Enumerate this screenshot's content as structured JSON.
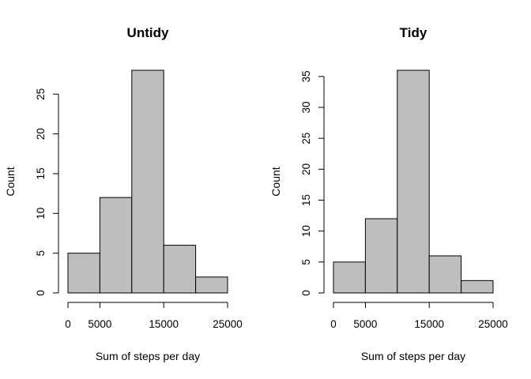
{
  "chart_data": [
    {
      "type": "bar",
      "title": "Untidy",
      "xlabel": "Sum of steps per day",
      "ylabel": "Count",
      "bins": [
        [
          0,
          5000
        ],
        [
          5000,
          10000
        ],
        [
          10000,
          15000
        ],
        [
          15000,
          20000
        ],
        [
          20000,
          25000
        ]
      ],
      "values": [
        5,
        12,
        28,
        6,
        2
      ],
      "xticks": [
        0,
        5000,
        15000,
        25000
      ],
      "xtick_labels": [
        "0",
        "5000",
        "15000",
        "25000"
      ],
      "yticks": [
        0,
        5,
        10,
        15,
        20,
        25
      ],
      "yrange": [
        0,
        28
      ],
      "bar_color": "#bebebe",
      "grid": false
    },
    {
      "type": "bar",
      "title": "Tidy",
      "xlabel": "Sum of steps per day",
      "ylabel": "Count",
      "bins": [
        [
          0,
          5000
        ],
        [
          5000,
          10000
        ],
        [
          10000,
          15000
        ],
        [
          15000,
          20000
        ],
        [
          20000,
          25000
        ]
      ],
      "values": [
        5,
        12,
        36,
        6,
        2
      ],
      "xticks": [
        0,
        5000,
        15000,
        25000
      ],
      "xtick_labels": [
        "0",
        "5000",
        "15000",
        "25000"
      ],
      "yticks": [
        0,
        5,
        10,
        15,
        20,
        25,
        30,
        35
      ],
      "yrange": [
        0,
        36
      ],
      "bar_color": "#bebebe",
      "grid": false
    }
  ]
}
